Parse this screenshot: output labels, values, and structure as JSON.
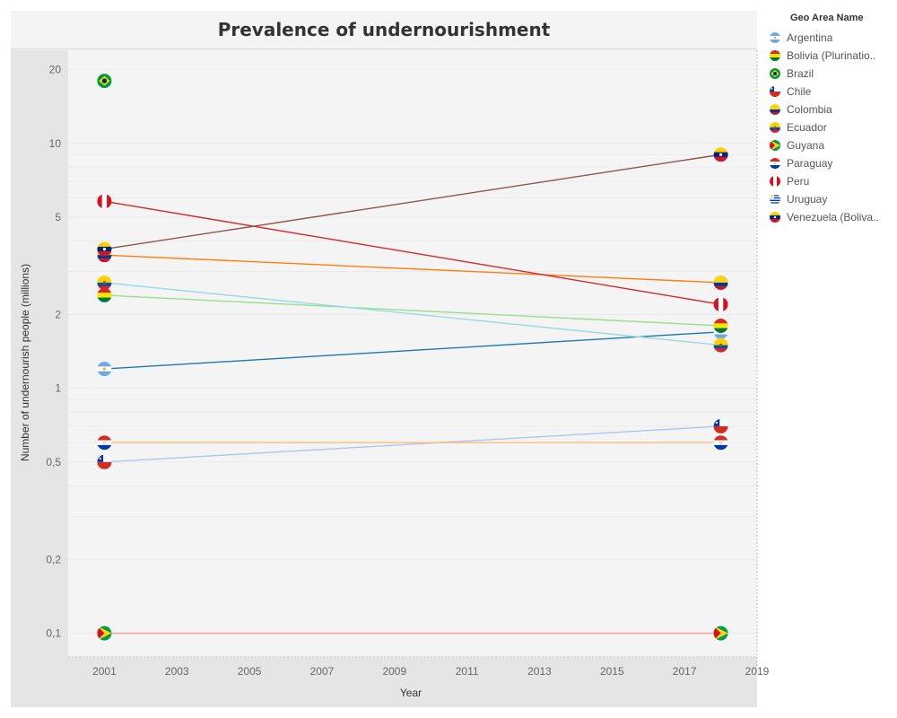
{
  "chart_data": {
    "type": "line",
    "title": "Prevalence of undernourishment",
    "xlabel": "Year",
    "ylabel": "Number of undernourish people (millions)",
    "xlim": [
      2000,
      2019
    ],
    "ylim": [
      0.08,
      24
    ],
    "yscale": "log",
    "x_ticks": [
      "2001",
      "2003",
      "2005",
      "2007",
      "2009",
      "2011",
      "2013",
      "2015",
      "2017",
      "2019"
    ],
    "y_ticks": [
      {
        "value": 20,
        "label": "20"
      },
      {
        "value": 10,
        "label": "10"
      },
      {
        "value": 5,
        "label": "5"
      },
      {
        "value": 2,
        "label": "2"
      },
      {
        "value": 1,
        "label": "1"
      },
      {
        "value": 0.5,
        "label": "0,5"
      },
      {
        "value": 0.2,
        "label": "0,2"
      },
      {
        "value": 0.1,
        "label": "0,1"
      }
    ],
    "grid": true,
    "legend_title": "Geo Area Name",
    "legend_position": "right",
    "series": [
      {
        "name": "Argentina",
        "color": "#1f77b4",
        "x": [
          2001,
          2018
        ],
        "y": [
          1.2,
          1.7
        ],
        "flag": "argentina"
      },
      {
        "name": "Bolivia (Plurinatio..",
        "color": "#98df8a",
        "x": [
          2001,
          2018
        ],
        "y": [
          2.4,
          1.8
        ],
        "flag": "bolivia"
      },
      {
        "name": "Brazil",
        "color": "#2ca02c",
        "x": [
          2001
        ],
        "y": [
          18
        ],
        "flag": "brazil"
      },
      {
        "name": "Chile",
        "color": "#aec7e8",
        "x": [
          2001,
          2018
        ],
        "y": [
          0.5,
          0.7
        ],
        "flag": "chile"
      },
      {
        "name": "Colombia",
        "color": "#ff7f0e",
        "x": [
          2001,
          2018
        ],
        "y": [
          3.5,
          2.7
        ],
        "flag": "colombia"
      },
      {
        "name": "Ecuador",
        "color": "#9edae5",
        "x": [
          2001,
          2018
        ],
        "y": [
          2.7,
          1.5
        ],
        "flag": "ecuador"
      },
      {
        "name": "Guyana",
        "color": "#ff9896",
        "x": [
          2001,
          2018
        ],
        "y": [
          0.1,
          0.1
        ],
        "flag": "guyana"
      },
      {
        "name": "Paraguay",
        "color": "#ffbb78",
        "x": [
          2001,
          2018
        ],
        "y": [
          0.6,
          0.6
        ],
        "flag": "paraguay"
      },
      {
        "name": "Peru",
        "color": "#d62728",
        "x": [
          2001,
          2018
        ],
        "y": [
          5.8,
          2.2
        ],
        "flag": "peru"
      },
      {
        "name": "Uruguay",
        "color": "#c7c7c7",
        "x": [],
        "y": [],
        "flag": "uruguay"
      },
      {
        "name": "Venezuela (Boliva..",
        "color": "#8c564b",
        "x": [
          2001,
          2018
        ],
        "y": [
          3.7,
          9
        ],
        "flag": "venezuela"
      }
    ]
  }
}
